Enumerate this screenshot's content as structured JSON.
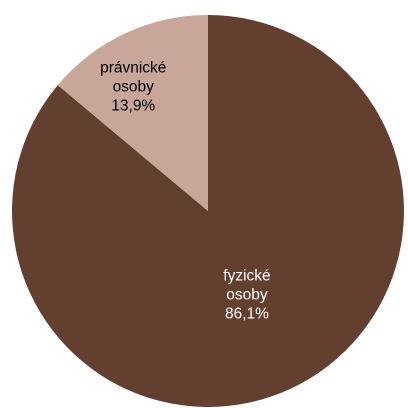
{
  "chart_data": {
    "type": "pie",
    "start_angle_deg": 0,
    "direction": "clockwise",
    "slices": [
      {
        "name_lines": [
          "fyzické",
          "osoby"
        ],
        "value": 86.1,
        "value_label": "86,1%",
        "color": "#633f2f",
        "label_color": "#ffffff"
      },
      {
        "name_lines": [
          "právnické",
          "osoby"
        ],
        "value": 13.9,
        "value_label": "13,9%",
        "color": "#c8a79a",
        "label_color": "#000000"
      }
    ]
  }
}
